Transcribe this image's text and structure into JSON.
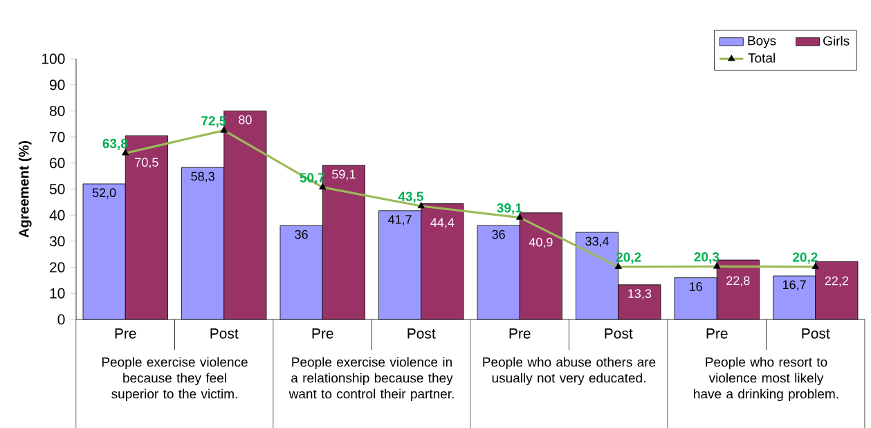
{
  "chart_data": {
    "type": "bar",
    "ylabel": "Agreement (%)",
    "categories": [
      "Pre",
      "Post",
      "Pre",
      "Post",
      "Pre",
      "Post",
      "Pre",
      "Post"
    ],
    "series": [
      {
        "name": "Boys",
        "color": "#9999ff",
        "values": [
          52.0,
          58.3,
          36,
          41.7,
          36,
          33.4,
          16,
          16.7
        ],
        "value_labels": [
          "52,0",
          "58,3",
          "36",
          "41,7",
          "36",
          "33,4",
          "16",
          "16,7"
        ]
      },
      {
        "name": "Girls",
        "color": "#993366",
        "values": [
          70.5,
          80,
          59.1,
          44.4,
          40.9,
          13.3,
          22.8,
          22.2
        ],
        "value_labels": [
          "70,5",
          "80",
          "59,1",
          "44,4",
          "40,9",
          "13,3",
          "22,8",
          "22,2"
        ]
      },
      {
        "name": "Total",
        "type": "line",
        "color": "#9bbb59",
        "marker": "triangle",
        "values": [
          63.8,
          72.5,
          50.7,
          43.5,
          39.1,
          20.2,
          20.3,
          20.2
        ],
        "value_labels": [
          "63,8",
          "72,5",
          "50,7",
          "43,5",
          "39,1",
          "20,2",
          "20,3",
          "20,2"
        ]
      }
    ],
    "ylim": [
      0,
      100
    ],
    "yticks": [
      0,
      10,
      20,
      30,
      40,
      50,
      60,
      70,
      80,
      90,
      100
    ],
    "legend": "top right",
    "annotations": [
      "People exercise violence because they feel superior to the victim.",
      "People exercise violence in a relationship because they want to control their partner.",
      "People who abuse others are usually not very educated.",
      "People who resort to violence most likely have a drinking problem."
    ]
  }
}
